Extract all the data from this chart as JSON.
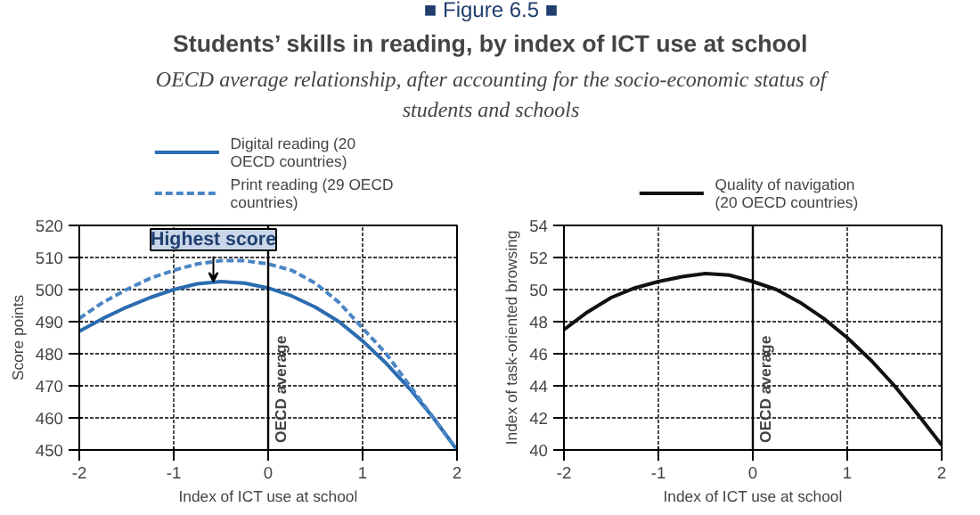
{
  "chart_data": [
    {
      "type": "line",
      "title": "Students’ skills in reading, by index of ICT use at school",
      "subtitle": "OECD average relationship, after accounting for the socio-economic status of students and schools",
      "annotations": [
        "■ Figure 6.5 ■",
        {
          "text": "Highest score",
          "x": -0.58,
          "y": 502.5
        }
      ],
      "xlabel": "Index of ICT use at school",
      "ylabel": "Score points",
      "x": [
        -2,
        -1.75,
        -1.5,
        -1.25,
        -1,
        -0.75,
        -0.5,
        -0.25,
        0,
        0.25,
        0.5,
        0.75,
        1,
        1.25,
        1.5,
        1.75,
        2
      ],
      "series": [
        {
          "name": "Digital reading (20 OECD countries)",
          "color": "#2b6cb0",
          "line_style": "solid",
          "values": [
            487,
            491,
            494.5,
            497.5,
            500,
            501.8,
            502.5,
            502,
            500.5,
            498,
            494.5,
            490,
            484,
            477,
            469,
            460,
            450
          ]
        },
        {
          "name": "Print reading (29 OECD countries)",
          "color": "#4a86c5",
          "line_style": "dotted",
          "values": [
            491,
            496,
            500,
            503.5,
            506,
            508,
            509,
            509,
            508,
            506,
            502,
            496,
            488,
            480,
            470,
            460,
            450
          ]
        }
      ],
      "xlim": [
        -2,
        2
      ],
      "ylim": [
        450,
        520
      ],
      "xticks": [
        -2,
        -1,
        0,
        1,
        2
      ],
      "yticks": [
        450,
        460,
        470,
        480,
        490,
        500,
        510,
        520
      ],
      "ref_lines": [
        {
          "axis": "x",
          "value": 0,
          "label": "OECD average"
        }
      ],
      "grid": true,
      "legend": "top"
    },
    {
      "type": "line",
      "xlabel": "Index of ICT use at school",
      "ylabel": "Index of task-oriented browsing",
      "x": [
        -2,
        -1.75,
        -1.5,
        -1.25,
        -1,
        -0.75,
        -0.5,
        -0.25,
        0,
        0.25,
        0.5,
        0.75,
        1,
        1.25,
        1.5,
        1.75,
        2
      ],
      "series": [
        {
          "name": "Quality of navigation (20 OECD countries)",
          "color": "#111111",
          "line_style": "solid",
          "values": [
            47.5,
            48.6,
            49.5,
            50.1,
            50.5,
            50.8,
            51,
            50.9,
            50.5,
            50,
            49.2,
            48.2,
            47,
            45.6,
            44,
            42.2,
            40.3
          ]
        }
      ],
      "xlim": [
        -2,
        2
      ],
      "ylim": [
        40,
        54
      ],
      "xticks": [
        -2,
        -1,
        0,
        1,
        2
      ],
      "yticks": [
        40,
        42,
        44,
        46,
        48,
        50,
        52,
        54
      ],
      "ref_lines": [
        {
          "axis": "x",
          "value": 0,
          "label": "OECD average"
        }
      ],
      "grid": true,
      "legend": "top"
    }
  ]
}
